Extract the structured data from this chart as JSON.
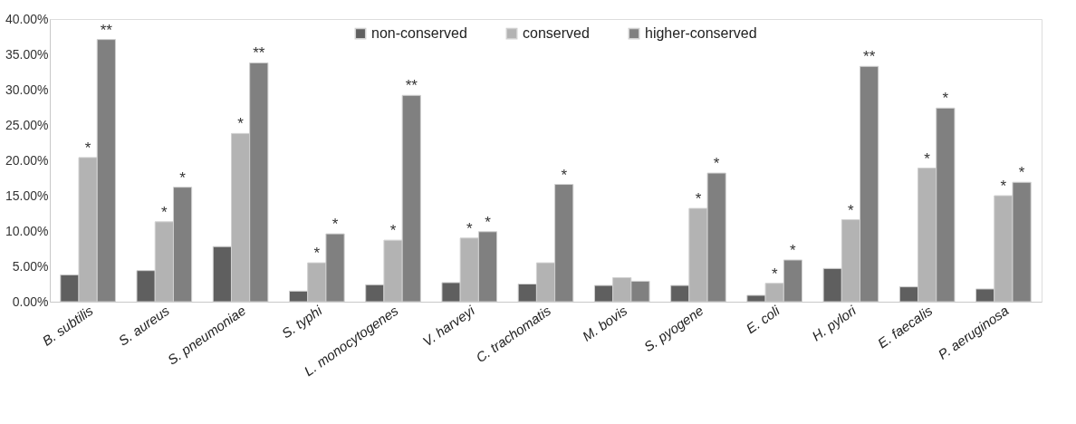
{
  "chart_data": {
    "type": "bar",
    "categories": [
      "B. subtilis",
      "S. aureus",
      "S. pneumoniae",
      "S. typhi",
      "L. monocytogenes",
      "V. harveyi",
      "C. trachomatis",
      "M. bovis",
      "S. pyogene",
      "E. coli",
      "H. pylori",
      "E. faecalis",
      "P. aeruginosa"
    ],
    "series": [
      {
        "name": "non-conserved",
        "color": "#5f5f5f",
        "values": [
          3.8,
          4.4,
          7.8,
          1.5,
          2.4,
          2.7,
          2.5,
          2.3,
          2.3,
          0.9,
          4.7,
          2.1,
          1.8
        ]
      },
      {
        "name": "conserved",
        "color": "#b3b3b3",
        "values": [
          20.4,
          11.3,
          23.8,
          5.5,
          8.7,
          9.0,
          5.5,
          3.4,
          13.2,
          2.6,
          11.6,
          18.9,
          15.0
        ],
        "value_labels": [
          "*",
          "*",
          "*",
          "*",
          "*",
          "*",
          null,
          null,
          "*",
          "*",
          "*",
          "*",
          "*"
        ]
      },
      {
        "name": "higher-conserved",
        "color": "#808080",
        "values": [
          37.1,
          16.2,
          33.8,
          9.6,
          29.2,
          9.9,
          16.6,
          2.9,
          18.2,
          5.9,
          33.3,
          27.4,
          16.9
        ],
        "value_labels": [
          "**",
          "*",
          "**",
          "*",
          "**",
          "*",
          "*",
          null,
          "*",
          "*",
          "**",
          "*",
          "*"
        ]
      }
    ],
    "ylim": [
      0,
      40
    ],
    "yticks": [
      {
        "value": 0,
        "label": "0.00%"
      },
      {
        "value": 5,
        "label": "5.00%"
      },
      {
        "value": 10,
        "label": "10.00%"
      },
      {
        "value": 15,
        "label": "15.00%"
      },
      {
        "value": 20,
        "label": "20.00%"
      },
      {
        "value": 25,
        "label": "25.00%"
      },
      {
        "value": 30,
        "label": "30.00%"
      },
      {
        "value": 35,
        "label": "35.00%"
      },
      {
        "value": 40,
        "label": "40.00%"
      }
    ],
    "grid": false,
    "legend": "top"
  }
}
